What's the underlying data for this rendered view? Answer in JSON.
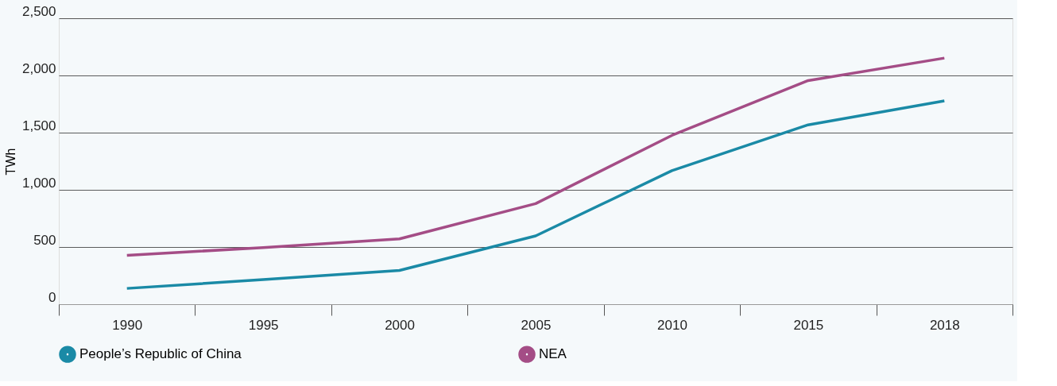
{
  "chart_data": {
    "type": "line",
    "ylabel": "TWh",
    "categories": [
      "1990",
      "1995",
      "2000",
      "2005",
      "2010",
      "2015",
      "2018"
    ],
    "series": [
      {
        "name": "People’s Republic of China",
        "color": "#1a8aa6",
        "values": [
          138,
          215,
          295,
          597,
          1168,
          1568,
          1778
        ]
      },
      {
        "name": "NEA",
        "color": "#a44d86",
        "values": [
          427,
          495,
          571,
          879,
          1476,
          1955,
          2152
        ]
      }
    ],
    "ylim": [
      0,
      2500
    ],
    "yticks": [
      0,
      500,
      {
        "value": 1000,
        "label": "1,000"
      },
      {
        "value": 1500,
        "label": "1,500"
      },
      {
        "value": 2000,
        "label": "2,000"
      },
      {
        "value": 2500,
        "label": "2,500"
      }
    ],
    "grid": "y",
    "legend": "bottom",
    "marker": "none",
    "line_style": "solid"
  }
}
